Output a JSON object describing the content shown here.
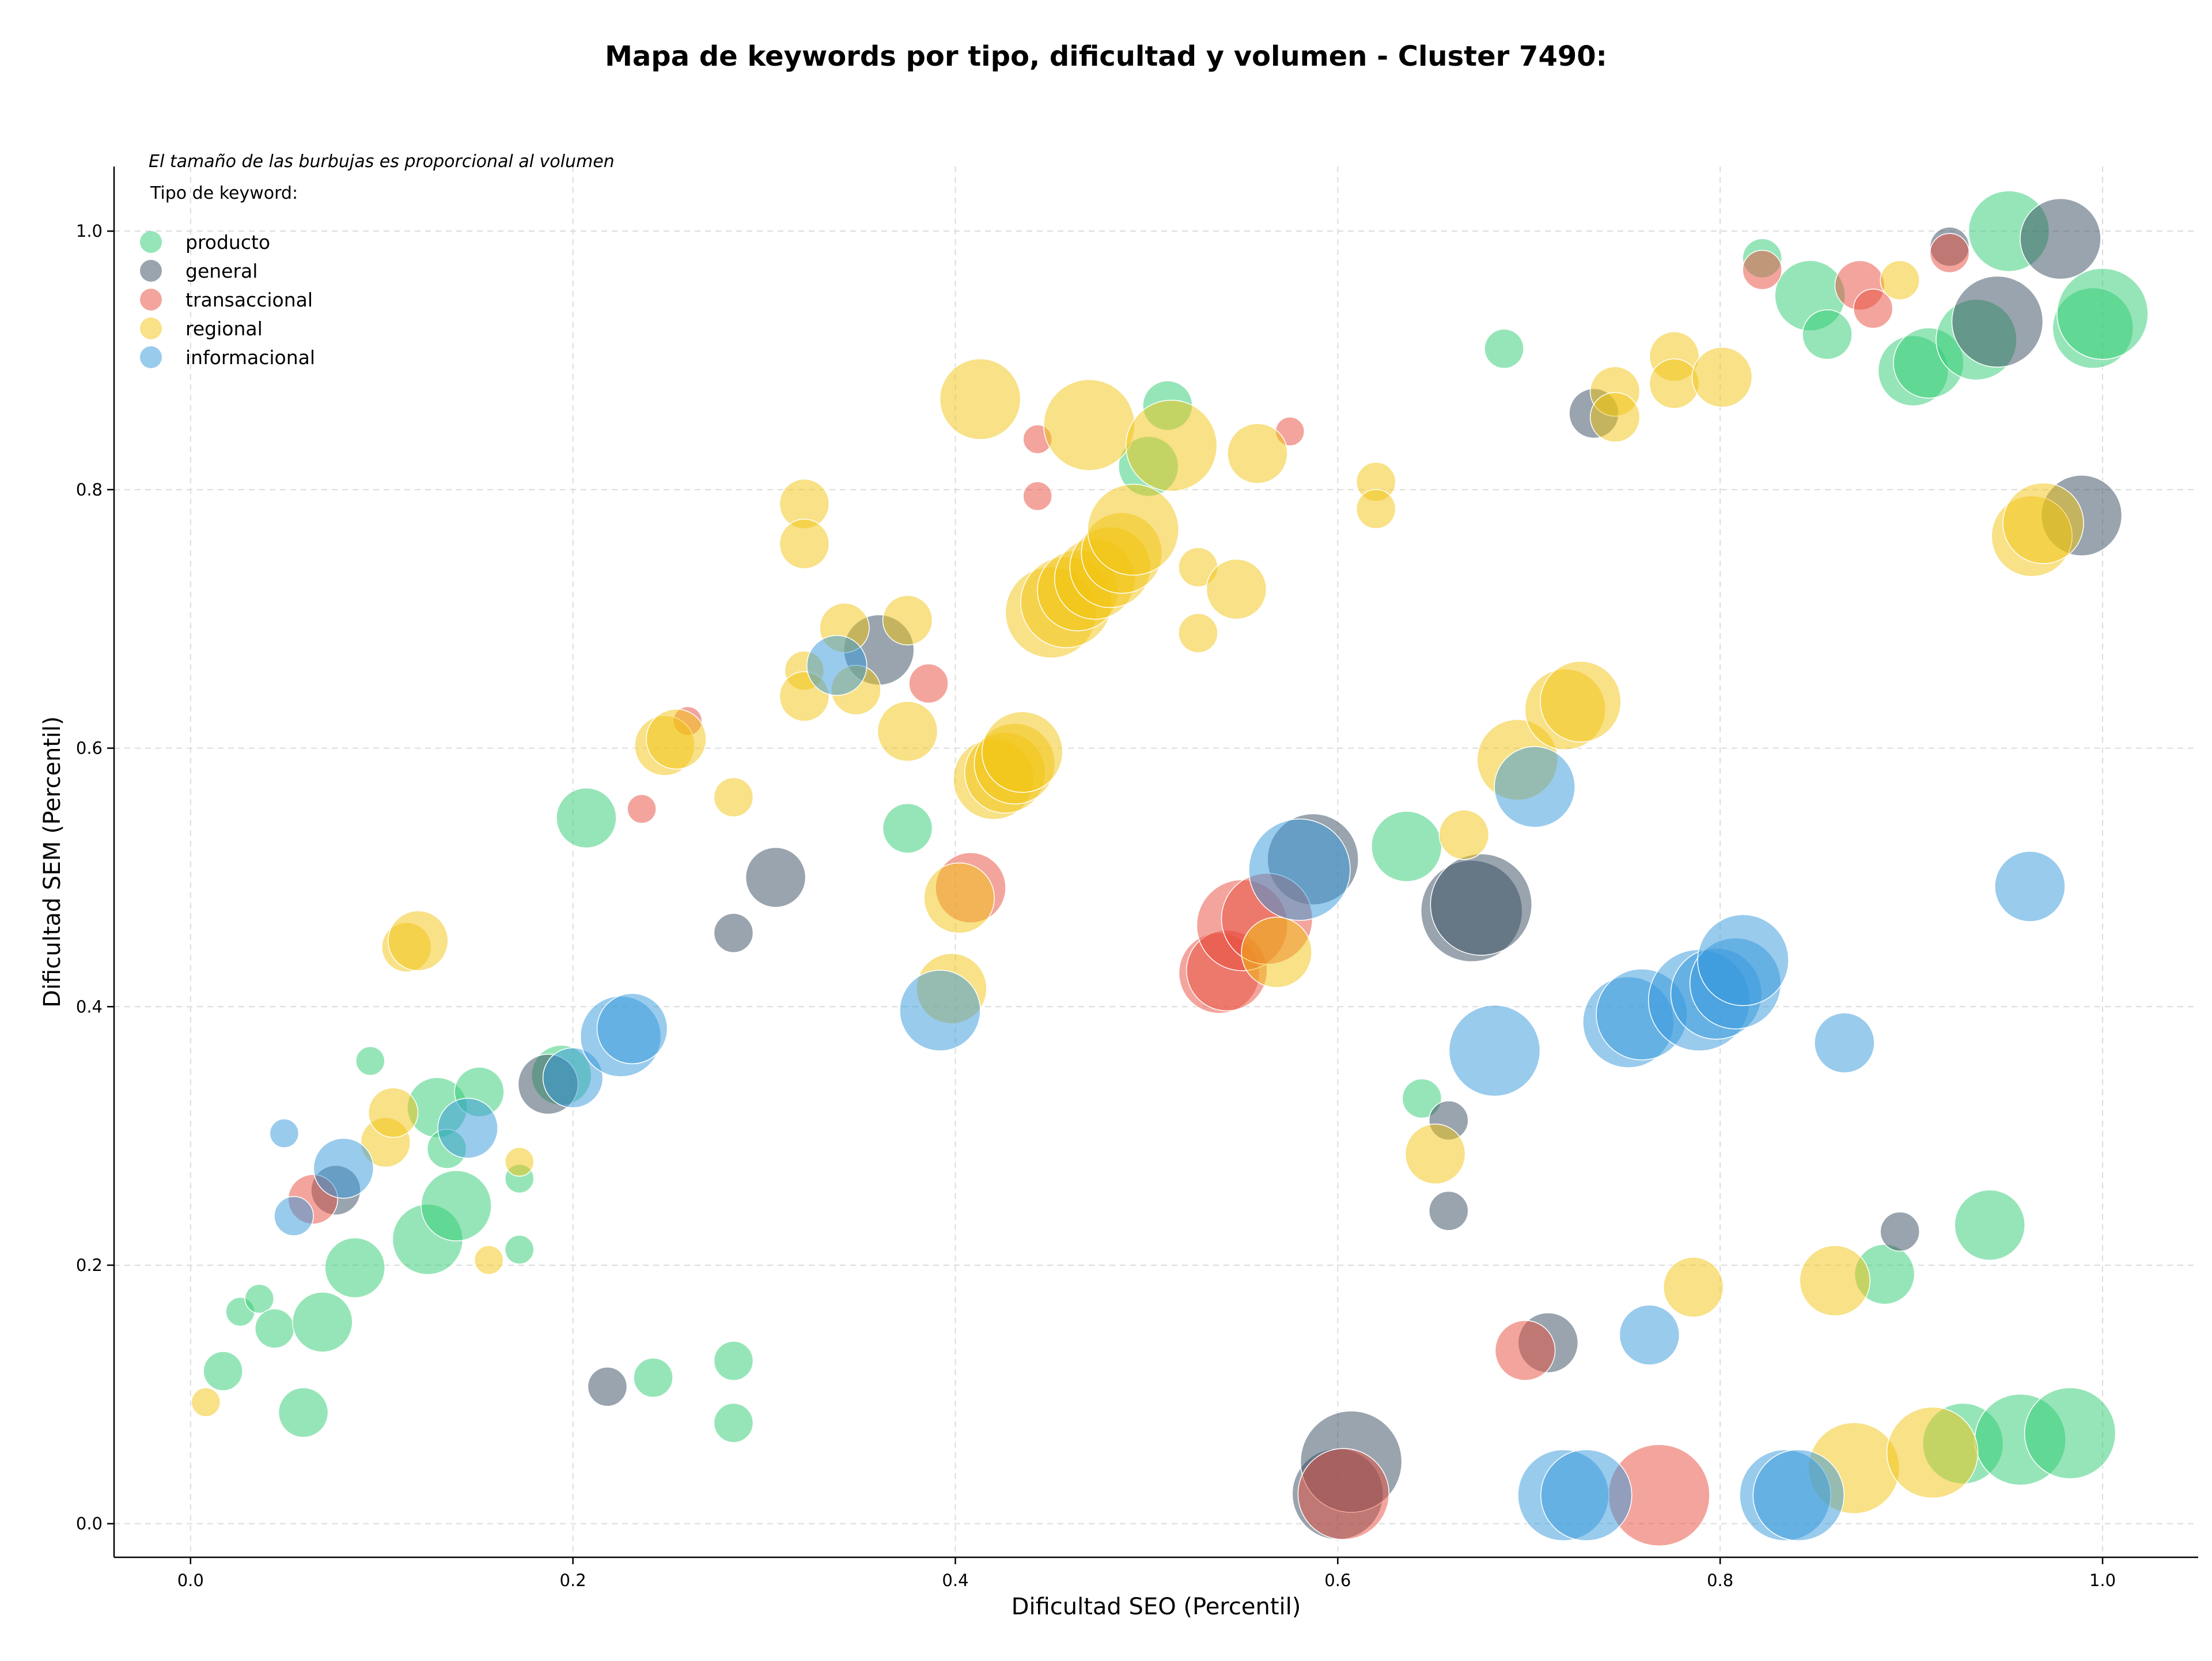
{
  "chart_data": {
    "type": "scatter",
    "title": "Mapa de keywords por tipo, dificultad y volumen - Cluster 7490:",
    "xlabel": "Dificultad SEO (Percentil)",
    "ylabel": "Dificultad SEM (Percentil)",
    "note": "El tamaño de las burbujas es proporcional al volumen",
    "legend_title": "Tipo de keyword:",
    "legend_position": "top-left",
    "grid": true,
    "xlim": [
      -0.04,
      1.05
    ],
    "ylim": [
      -0.026,
      1.05
    ],
    "xticks": [
      0.0,
      0.2,
      0.4,
      0.6,
      0.8,
      1.0
    ],
    "yticks": [
      0.0,
      0.2,
      0.4,
      0.6,
      0.8,
      1.0
    ],
    "xtick_labels": [
      "0.0",
      "0.2",
      "0.4",
      "0.6",
      "0.8",
      "1.0"
    ],
    "ytick_labels": [
      "0.0",
      "0.2",
      "0.4",
      "0.6",
      "0.8",
      "1.0"
    ],
    "series": [
      {
        "name": "producto",
        "color": "#2ecc71",
        "points": [
          [
            0.017,
            0.118,
            2
          ],
          [
            0.026,
            0.164,
            1
          ],
          [
            0.036,
            0.174,
            1
          ],
          [
            0.044,
            0.151,
            2
          ],
          [
            0.059,
            0.086,
            3
          ],
          [
            0.069,
            0.156,
            4
          ],
          [
            0.086,
            0.198,
            4
          ],
          [
            0.094,
            0.358,
            1
          ],
          [
            0.124,
            0.22,
            5
          ],
          [
            0.129,
            0.322,
            4
          ],
          [
            0.134,
            0.29,
            2
          ],
          [
            0.139,
            0.246,
            5
          ],
          [
            0.151,
            0.334,
            3
          ],
          [
            0.172,
            0.267,
            1
          ],
          [
            0.172,
            0.212,
            1
          ],
          [
            0.194,
            0.347,
            4
          ],
          [
            0.207,
            0.546,
            4
          ],
          [
            0.242,
            0.113,
            2
          ],
          [
            0.284,
            0.126,
            2
          ],
          [
            0.284,
            0.078,
            2
          ],
          [
            0.375,
            0.538,
            3
          ],
          [
            0.511,
            0.865,
            3
          ],
          [
            0.501,
            0.818,
            4
          ],
          [
            0.636,
            0.524,
            5
          ],
          [
            0.644,
            0.329,
            2
          ],
          [
            0.687,
            0.909,
            2
          ],
          [
            0.822,
            0.979,
            2
          ],
          [
            0.847,
            0.95,
            5
          ],
          [
            0.856,
            0.92,
            3
          ],
          [
            0.886,
            0.193,
            4
          ],
          [
            0.901,
            0.892,
            5
          ],
          [
            0.909,
            0.898,
            5
          ],
          [
            0.934,
            0.916,
            6
          ],
          [
            0.941,
            0.231,
            5
          ],
          [
            0.951,
            1.0,
            6
          ],
          [
            0.995,
            0.925,
            6
          ],
          [
            1.0,
            0.936,
            7
          ],
          [
            0.927,
            0.062,
            6
          ],
          [
            0.957,
            0.065,
            7
          ],
          [
            0.983,
            0.07,
            7
          ]
        ]
      },
      {
        "name": "general",
        "color": "#34495e",
        "points": [
          [
            0.076,
            0.258,
            3
          ],
          [
            0.187,
            0.34,
            4
          ],
          [
            0.218,
            0.106,
            2
          ],
          [
            0.284,
            0.457,
            2
          ],
          [
            0.306,
            0.5,
            4
          ],
          [
            0.36,
            0.676,
            5
          ],
          [
            0.6,
            0.023,
            7
          ],
          [
            0.607,
            0.048,
            8
          ],
          [
            0.587,
            0.514,
            7
          ],
          [
            0.658,
            0.312,
            2
          ],
          [
            0.658,
            0.242,
            2
          ],
          [
            0.67,
            0.474,
            8
          ],
          [
            0.675,
            0.479,
            8
          ],
          [
            0.71,
            0.14,
            4
          ],
          [
            0.734,
            0.859,
            3
          ],
          [
            0.894,
            0.226,
            2
          ],
          [
            0.92,
            0.988,
            2
          ],
          [
            0.945,
            0.93,
            7
          ],
          [
            0.978,
            0.994,
            6
          ],
          [
            0.989,
            0.78,
            6
          ]
        ]
      },
      {
        "name": "transaccional",
        "color": "#e74c3c",
        "points": [
          [
            0.064,
            0.251,
            3
          ],
          [
            0.236,
            0.553,
            1
          ],
          [
            0.26,
            0.621,
            1
          ],
          [
            0.386,
            0.65,
            2
          ],
          [
            0.408,
            0.492,
            5
          ],
          [
            0.443,
            0.839,
            1
          ],
          [
            0.443,
            0.795,
            1
          ],
          [
            0.538,
            0.426,
            6
          ],
          [
            0.542,
            0.428,
            6
          ],
          [
            0.55,
            0.463,
            7
          ],
          [
            0.563,
            0.468,
            7
          ],
          [
            0.575,
            0.845,
            1
          ],
          [
            0.603,
            0.023,
            7
          ],
          [
            0.698,
            0.134,
            4
          ],
          [
            0.768,
            0.022,
            8
          ],
          [
            0.822,
            0.97,
            2
          ],
          [
            0.873,
            0.958,
            3
          ],
          [
            0.88,
            0.94,
            2
          ],
          [
            0.92,
            0.983,
            2
          ]
        ]
      },
      {
        "name": "regional",
        "color": "#f1c40f",
        "points": [
          [
            0.008,
            0.094,
            1
          ],
          [
            0.102,
            0.295,
            3
          ],
          [
            0.106,
            0.318,
            3
          ],
          [
            0.113,
            0.446,
            3
          ],
          [
            0.119,
            0.451,
            4
          ],
          [
            0.156,
            0.204,
            1
          ],
          [
            0.172,
            0.28,
            1
          ],
          [
            0.248,
            0.602,
            4
          ],
          [
            0.254,
            0.607,
            4
          ],
          [
            0.284,
            0.562,
            2
          ],
          [
            0.321,
            0.789,
            3
          ],
          [
            0.321,
            0.758,
            3
          ],
          [
            0.321,
            0.66,
            2
          ],
          [
            0.321,
            0.64,
            3
          ],
          [
            0.342,
            0.693,
            3
          ],
          [
            0.348,
            0.645,
            3
          ],
          [
            0.375,
            0.699,
            3
          ],
          [
            0.375,
            0.613,
            4
          ],
          [
            0.398,
            0.414,
            5
          ],
          [
            0.402,
            0.484,
            5
          ],
          [
            0.413,
            0.87,
            6
          ],
          [
            0.42,
            0.576,
            6
          ],
          [
            0.426,
            0.581,
            6
          ],
          [
            0.431,
            0.588,
            6
          ],
          [
            0.435,
            0.597,
            6
          ],
          [
            0.45,
            0.705,
            7
          ],
          [
            0.458,
            0.713,
            7
          ],
          [
            0.464,
            0.722,
            6
          ],
          [
            0.47,
            0.85,
            7
          ],
          [
            0.473,
            0.731,
            6
          ],
          [
            0.481,
            0.74,
            6
          ],
          [
            0.487,
            0.751,
            6
          ],
          [
            0.493,
            0.769,
            7
          ],
          [
            0.513,
            0.834,
            7
          ],
          [
            0.527,
            0.74,
            2
          ],
          [
            0.527,
            0.689,
            2
          ],
          [
            0.547,
            0.723,
            4
          ],
          [
            0.558,
            0.828,
            4
          ],
          [
            0.568,
            0.442,
            5
          ],
          [
            0.62,
            0.806,
            2
          ],
          [
            0.62,
            0.785,
            2
          ],
          [
            0.651,
            0.286,
            4
          ],
          [
            0.666,
            0.533,
            3
          ],
          [
            0.694,
            0.591,
            6
          ],
          [
            0.719,
            0.63,
            6
          ],
          [
            0.727,
            0.636,
            6
          ],
          [
            0.745,
            0.876,
            3
          ],
          [
            0.745,
            0.856,
            3
          ],
          [
            0.776,
            0.903,
            3
          ],
          [
            0.776,
            0.882,
            3
          ],
          [
            0.786,
            0.183,
            4
          ],
          [
            0.801,
            0.887,
            4
          ],
          [
            0.86,
            0.188,
            5
          ],
          [
            0.87,
            0.043,
            7
          ],
          [
            0.894,
            0.962,
            2
          ],
          [
            0.911,
            0.055,
            7
          ],
          [
            0.963,
            0.764,
            6
          ],
          [
            0.969,
            0.774,
            6
          ]
        ]
      },
      {
        "name": "informacional",
        "color": "#3498db",
        "points": [
          [
            0.049,
            0.302,
            1
          ],
          [
            0.054,
            0.238,
            2
          ],
          [
            0.08,
            0.275,
            4
          ],
          [
            0.145,
            0.306,
            4
          ],
          [
            0.2,
            0.345,
            4
          ],
          [
            0.225,
            0.377,
            6
          ],
          [
            0.231,
            0.383,
            5
          ],
          [
            0.338,
            0.664,
            4
          ],
          [
            0.392,
            0.397,
            6
          ],
          [
            0.58,
            0.506,
            8
          ],
          [
            0.682,
            0.366,
            7
          ],
          [
            0.703,
            0.57,
            6
          ],
          [
            0.718,
            0.022,
            7
          ],
          [
            0.73,
            0.022,
            7
          ],
          [
            0.752,
            0.388,
            7
          ],
          [
            0.759,
            0.394,
            7
          ],
          [
            0.763,
            0.146,
            4
          ],
          [
            0.789,
            0.405,
            8
          ],
          [
            0.798,
            0.41,
            7
          ],
          [
            0.808,
            0.418,
            7
          ],
          [
            0.812,
            0.436,
            7
          ],
          [
            0.834,
            0.022,
            7
          ],
          [
            0.841,
            0.022,
            7
          ],
          [
            0.865,
            0.372,
            4
          ],
          [
            0.962,
            0.493,
            5
          ]
        ]
      }
    ]
  }
}
